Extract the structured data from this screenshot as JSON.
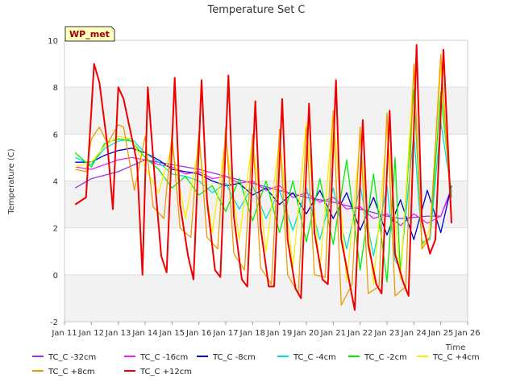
{
  "chart_data": {
    "type": "line",
    "title": "Temperature Set C",
    "xlabel": "Time",
    "ylabel": "Temperature (C)",
    "badge": "WP_met",
    "xlim": [
      11,
      26
    ],
    "ylim": [
      -2,
      10
    ],
    "yticks": [
      -2,
      0,
      2,
      4,
      6,
      8,
      10
    ],
    "xticks": [
      {
        "v": 11,
        "label": "Jan 11"
      },
      {
        "v": 12,
        "label": "Jan 12"
      },
      {
        "v": 13,
        "label": "Jan 13"
      },
      {
        "v": 14,
        "label": "Jan 14"
      },
      {
        "v": 15,
        "label": "Jan 15"
      },
      {
        "v": 16,
        "label": "Jan 16"
      },
      {
        "v": 17,
        "label": "Jan 17"
      },
      {
        "v": 18,
        "label": "Jan 18"
      },
      {
        "v": 19,
        "label": "Jan 19"
      },
      {
        "v": 20,
        "label": "Jan 20"
      },
      {
        "v": 21,
        "label": "Jan 21"
      },
      {
        "v": 22,
        "label": "Jan 22"
      },
      {
        "v": 23,
        "label": "Jan 23"
      },
      {
        "v": 24,
        "label": "Jan 24"
      },
      {
        "v": 25,
        "label": "Jan 25"
      },
      {
        "v": 26,
        "label": "Jan 26"
      }
    ],
    "grid": true,
    "legend_position": "bottom",
    "series": [
      {
        "name": "TC_C -32cm",
        "color": "#9933ee",
        "x": [
          11.4,
          12,
          13,
          14,
          15,
          16,
          17,
          18,
          19,
          20,
          21,
          22,
          23,
          23.5,
          24,
          24.5,
          25,
          25.4
        ],
        "y": [
          3.7,
          4.1,
          4.4,
          4.9,
          4.7,
          4.5,
          4.2,
          3.9,
          3.6,
          3.3,
          3.1,
          2.8,
          2.5,
          2.4,
          2.45,
          2.5,
          2.5,
          3.7
        ]
      },
      {
        "name": "TC_C -16cm",
        "color": "#ee22ee",
        "x": [
          11.4,
          12,
          13,
          13.5,
          14,
          14.5,
          15,
          15.5,
          16,
          16.5,
          17,
          17.5,
          18,
          18.5,
          19,
          19.5,
          20,
          20.5,
          21,
          21.5,
          22,
          22.5,
          23,
          23.5,
          24,
          24.5,
          25,
          25.4
        ],
        "y": [
          4.6,
          4.5,
          4.9,
          5.0,
          4.9,
          4.7,
          4.6,
          4.3,
          4.4,
          4.1,
          4.2,
          3.9,
          4.0,
          3.6,
          3.8,
          3.3,
          3.5,
          3.1,
          3.3,
          2.8,
          2.9,
          2.4,
          2.6,
          2.1,
          2.6,
          2.2,
          2.5,
          3.6
        ]
      },
      {
        "name": "TC_C -8cm",
        "color": "#0000cc",
        "x": [
          11.4,
          12,
          12.5,
          13,
          13.5,
          14,
          14.5,
          15,
          15.5,
          16,
          16.5,
          17,
          17.5,
          18,
          18.5,
          19,
          19.5,
          20,
          20.5,
          21,
          21.5,
          22,
          22.5,
          23,
          23.5,
          24,
          24.5,
          25,
          25.4
        ],
        "y": [
          4.8,
          4.8,
          5.1,
          5.3,
          5.4,
          5.2,
          4.9,
          4.5,
          4.4,
          4.3,
          4.0,
          3.8,
          3.9,
          3.4,
          3.7,
          3.0,
          3.5,
          2.6,
          3.6,
          2.4,
          3.5,
          1.9,
          3.3,
          1.7,
          3.2,
          1.5,
          3.6,
          1.8,
          3.8
        ]
      },
      {
        "name": "TC_C -4cm",
        "color": "#00dddd",
        "x": [
          11.4,
          12,
          12.5,
          13,
          13.5,
          14,
          14.5,
          15,
          15.5,
          16,
          16.5,
          17,
          17.5,
          18,
          18.5,
          19,
          19.5,
          20,
          20.5,
          21,
          21.5,
          22,
          22.5,
          23,
          23.3,
          23.5,
          24,
          24.3,
          24.6,
          25,
          25.4
        ],
        "y": [
          5.0,
          4.7,
          5.4,
          5.7,
          5.8,
          5.2,
          4.8,
          4.3,
          4.2,
          4.0,
          3.5,
          3.9,
          2.8,
          3.8,
          2.4,
          3.6,
          1.9,
          3.7,
          1.5,
          3.7,
          1.1,
          3.8,
          0.8,
          3.8,
          0.6,
          0.3,
          6.0,
          1.4,
          1.5,
          6.5,
          3.5
        ]
      },
      {
        "name": "TC_C -2cm",
        "color": "#00ee00",
        "x": [
          11.4,
          12,
          12.5,
          13,
          13.5,
          14,
          14.5,
          15,
          15.5,
          16,
          16.5,
          17,
          17.5,
          18,
          18.5,
          19,
          19.5,
          20,
          20.5,
          21,
          21.5,
          22,
          22.5,
          23,
          23.3,
          23.5,
          24,
          24.3,
          24.6,
          25,
          25.4
        ],
        "y": [
          5.2,
          4.6,
          5.6,
          5.8,
          5.7,
          5.0,
          4.5,
          3.7,
          4.2,
          3.4,
          3.8,
          2.7,
          4.1,
          2.3,
          4.0,
          1.8,
          4.0,
          1.4,
          4.1,
          1.3,
          4.9,
          0.2,
          4.3,
          -0.3,
          5.0,
          0.0,
          7.9,
          1.3,
          1.6,
          7.8,
          3.3
        ]
      },
      {
        "name": "TC_C +4cm",
        "color": "#ffee00",
        "x": [
          11.4,
          12,
          12.5,
          13,
          13.5,
          14,
          14.5,
          15,
          15.5,
          16,
          16.5,
          17,
          17.5,
          18,
          18.5,
          19,
          19.5,
          20,
          20.5,
          21,
          21.5,
          22,
          22.5,
          23,
          23.5,
          24,
          24.3,
          24.6,
          25,
          25.4
        ],
        "y": [
          4.6,
          4.8,
          5.5,
          5.9,
          5.8,
          4.6,
          3.5,
          5.5,
          2.4,
          5.5,
          1.8,
          5.8,
          1.5,
          5.8,
          1.0,
          5.8,
          0.3,
          6.5,
          0.2,
          7.0,
          -0.3,
          5.8,
          -0.4,
          6.2,
          -0.2,
          8.8,
          1.1,
          2.0,
          8.9,
          2.6
        ]
      },
      {
        "name": "TC_C +8cm",
        "color": "#ee9900",
        "x": [
          11.4,
          11.8,
          12,
          12.3,
          12.6,
          13,
          13.2,
          13.6,
          14,
          14.3,
          14.7,
          15,
          15.3,
          15.7,
          16,
          16.3,
          16.7,
          17,
          17.3,
          17.7,
          18,
          18.3,
          18.7,
          19,
          19.3,
          19.7,
          20,
          20.3,
          20.7,
          21,
          21.3,
          21.7,
          22,
          22.3,
          22.7,
          23,
          23.3,
          23.7,
          24,
          24.3,
          24.6,
          25,
          25.4
        ],
        "y": [
          4.5,
          4.4,
          5.8,
          6.3,
          5.6,
          6.4,
          6.3,
          3.6,
          5.9,
          2.9,
          2.4,
          6.0,
          2.0,
          1.6,
          6.1,
          1.6,
          1.1,
          6.3,
          0.9,
          0.2,
          6.0,
          0.3,
          -0.4,
          6.2,
          0.0,
          -0.8,
          6.3,
          0.0,
          -0.1,
          7.0,
          -1.3,
          -0.4,
          6.3,
          -0.8,
          -0.5,
          6.9,
          -0.9,
          -0.5,
          9.0,
          1.1,
          1.6,
          9.4,
          2.4
        ]
      },
      {
        "name": "TC_C +12cm",
        "color": "#ee0000",
        "x": [
          11.4,
          11.8,
          12,
          12.1,
          12.3,
          12.6,
          12.8,
          13,
          13.2,
          13.4,
          13.7,
          13.9,
          14.1,
          14.4,
          14.6,
          14.8,
          15.1,
          15.3,
          15.6,
          15.8,
          16.1,
          16.3,
          16.6,
          16.8,
          17.1,
          17.3,
          17.6,
          17.8,
          18.1,
          18.3,
          18.6,
          18.8,
          19.1,
          19.3,
          19.6,
          19.8,
          20.1,
          20.3,
          20.6,
          20.8,
          21.1,
          21.3,
          21.6,
          21.8,
          22.1,
          22.3,
          22.6,
          22.8,
          23.1,
          23.3,
          23.6,
          23.8,
          24.1,
          24.3,
          24.6,
          24.8,
          25.1,
          25.4
        ],
        "y": [
          3.0,
          3.3,
          7.0,
          9.0,
          8.2,
          5.5,
          2.8,
          8.0,
          7.5,
          6.4,
          4.8,
          0.0,
          8.0,
          3.5,
          0.8,
          0.1,
          8.4,
          3.0,
          0.8,
          -0.2,
          8.3,
          3.2,
          0.2,
          -0.1,
          8.5,
          2.5,
          -0.2,
          -0.5,
          7.4,
          2.0,
          -0.5,
          -0.5,
          7.5,
          1.5,
          -0.6,
          -1.0,
          7.3,
          1.8,
          -0.2,
          -0.4,
          8.3,
          1.5,
          -0.3,
          -1.5,
          6.6,
          1.3,
          -0.4,
          -0.8,
          7.0,
          0.9,
          -0.3,
          -0.9,
          9.8,
          2.3,
          0.9,
          1.5,
          9.6,
          2.2
        ]
      }
    ]
  }
}
